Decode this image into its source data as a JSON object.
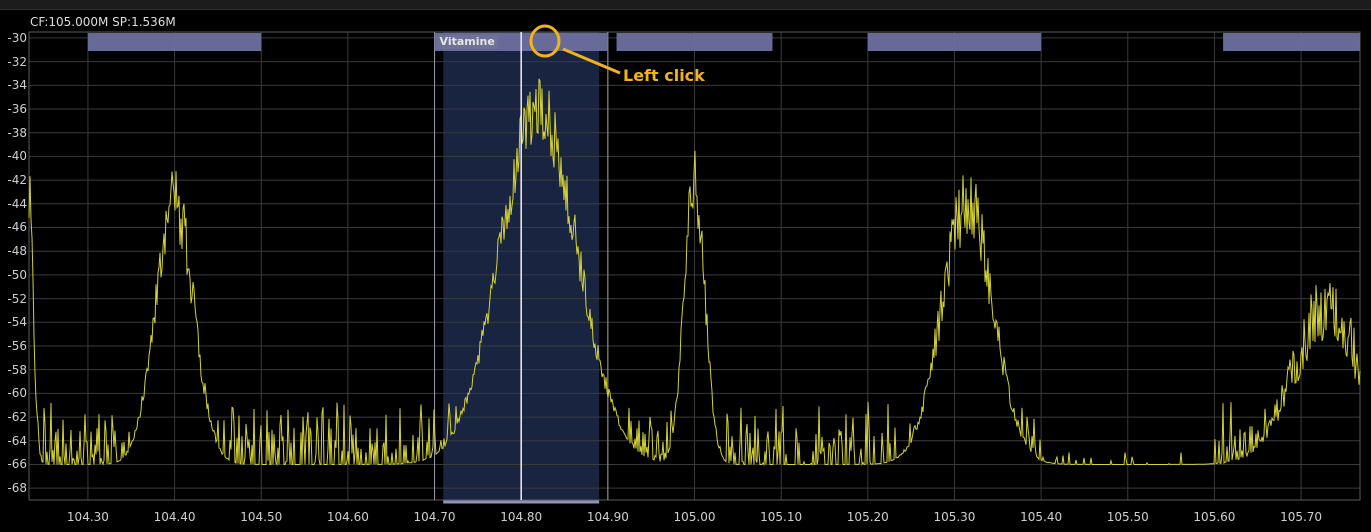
{
  "header": {
    "info": "CF:105.000M SP:1.536M"
  },
  "y_axis": {
    "min": -69,
    "max": -29.5,
    "labels": [
      "-30",
      "-32",
      "-34",
      "-36",
      "-38",
      "-40",
      "-42",
      "-44",
      "-46",
      "-48",
      "-50",
      "-52",
      "-54",
      "-56",
      "-58",
      "-60",
      "-62",
      "-64",
      "-66",
      "-68"
    ]
  },
  "x_axis": {
    "min_mhz": 104.232,
    "max_mhz": 105.768,
    "labels": [
      "104.30",
      "104.40",
      "104.50",
      "104.60",
      "104.70",
      "104.80",
      "104.90",
      "105.00",
      "105.10",
      "105.20",
      "105.30",
      "105.40",
      "105.50",
      "105.60",
      "105.70"
    ]
  },
  "bookmarks": [
    {
      "start": 104.3,
      "end": 104.5
    },
    {
      "start": 104.7,
      "end": 104.9,
      "name": "Vitamine"
    },
    {
      "start": 104.91,
      "end": 105.09
    },
    {
      "start": 105.2,
      "end": 105.4
    },
    {
      "start": 105.61,
      "end": 105.768
    }
  ],
  "selected_channel": {
    "start": 104.71,
    "end": 104.89,
    "center": 104.8
  },
  "signal": {
    "noise_floor_dbfs": -66,
    "peaks": [
      {
        "freq": 104.232,
        "level": -44,
        "width": 0.005
      },
      {
        "freq": 104.4,
        "level": -44,
        "width": 0.022
      },
      {
        "freq": 104.82,
        "level": -36,
        "width": 0.045
      },
      {
        "freq": 105.0,
        "level": -42,
        "width": 0.012
      },
      {
        "freq": 105.315,
        "level": -44,
        "width": 0.03
      },
      {
        "freq": 105.73,
        "level": -53,
        "width": 0.04
      }
    ],
    "dead_zones": [
      [
        105.4,
        105.6
      ]
    ]
  },
  "annotation": {
    "label": "Left click"
  },
  "colors": {
    "trace": "#d4d235",
    "grid": "#3a3a3a",
    "bookmark": "#6d6f9f",
    "channel_fill": "#1a2645",
    "annotation": "#f2b21a"
  }
}
